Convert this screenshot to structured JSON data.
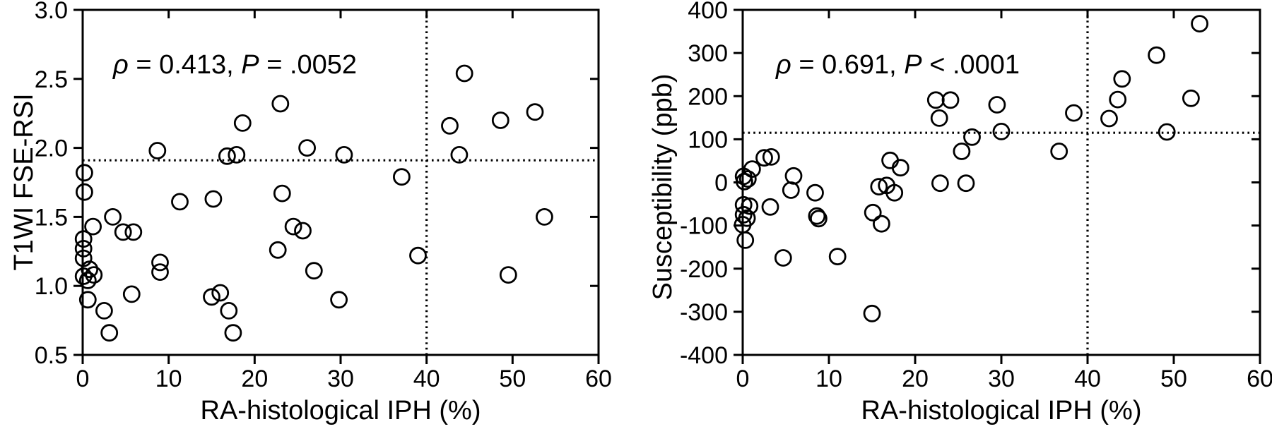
{
  "figure": {
    "background": "#ffffff",
    "ink_color": "#000000",
    "description": "Two-panel scatter figure: MRI metrics vs histological intraplaque hemorrhage percentage"
  },
  "chart_data": [
    {
      "type": "scatter",
      "name": "t1wi-fse-rsi-vs-iph",
      "title": "",
      "xlabel": "RA-histological IPH (%)",
      "ylabel": "T1WI FSE-RSI",
      "xlim": [
        0,
        60
      ],
      "ylim": [
        0.5,
        3.0
      ],
      "grid": false,
      "legend_position": "none",
      "marker": "open-circle",
      "xticks": {
        "values": [
          0,
          10,
          20,
          30,
          40,
          50,
          60
        ],
        "labels": [
          "0",
          "10",
          "20",
          "30",
          "40",
          "50",
          "60"
        ]
      },
      "yticks": {
        "values": [
          0.5,
          1.0,
          1.5,
          2.0,
          2.5,
          3.0
        ],
        "labels": [
          "0.5",
          "1.0",
          "1.5",
          "2.0",
          "2.5",
          "3.0"
        ]
      },
      "annotation": {
        "plain_text": "ρ = 0.413, P = .0052",
        "segments": [
          {
            "text": "ρ",
            "italic": true
          },
          {
            "text": " = 0.413, ",
            "italic": false
          },
          {
            "text": "P",
            "italic": true
          },
          {
            "text": " = .0052",
            "italic": false
          }
        ]
      },
      "reference_lines": {
        "horizontal_y": 1.91,
        "vertical_x": 40,
        "style": "dotted"
      },
      "points": [
        [
          0.2,
          1.82
        ],
        [
          0.2,
          1.68
        ],
        [
          0.1,
          1.34
        ],
        [
          0.1,
          1.27
        ],
        [
          0.1,
          1.2
        ],
        [
          0.8,
          1.12
        ],
        [
          0.1,
          1.07
        ],
        [
          0.6,
          1.04
        ],
        [
          1.3,
          1.08
        ],
        [
          0.6,
          0.9
        ],
        [
          1.2,
          1.43
        ],
        [
          2.5,
          0.82
        ],
        [
          3.1,
          0.66
        ],
        [
          3.5,
          1.5
        ],
        [
          4.7,
          1.39
        ],
        [
          5.9,
          1.39
        ],
        [
          5.7,
          0.94
        ],
        [
          8.7,
          1.98
        ],
        [
          9.0,
          1.17
        ],
        [
          9.0,
          1.1
        ],
        [
          11.3,
          1.61
        ],
        [
          15.2,
          1.63
        ],
        [
          15.0,
          0.92
        ],
        [
          16.0,
          0.95
        ],
        [
          17.0,
          0.82
        ],
        [
          17.5,
          0.66
        ],
        [
          16.8,
          1.94
        ],
        [
          17.9,
          1.95
        ],
        [
          18.6,
          2.18
        ],
        [
          23.0,
          2.32
        ],
        [
          23.2,
          1.67
        ],
        [
          22.7,
          1.26
        ],
        [
          24.5,
          1.43
        ],
        [
          25.6,
          1.4
        ],
        [
          26.1,
          2.0
        ],
        [
          26.9,
          1.11
        ],
        [
          29.8,
          0.9
        ],
        [
          30.4,
          1.95
        ],
        [
          37.1,
          1.79
        ],
        [
          39.0,
          1.22
        ],
        [
          42.7,
          2.16
        ],
        [
          43.8,
          1.95
        ],
        [
          44.4,
          2.54
        ],
        [
          48.6,
          2.2
        ],
        [
          49.5,
          1.08
        ],
        [
          52.6,
          2.26
        ],
        [
          53.7,
          1.5
        ]
      ]
    },
    {
      "type": "scatter",
      "name": "susceptibility-vs-iph",
      "title": "",
      "xlabel": "RA-histological IPH (%)",
      "ylabel": "Susceptibility (ppb)",
      "xlim": [
        0,
        60
      ],
      "ylim": [
        -400,
        400
      ],
      "grid": false,
      "legend_position": "none",
      "marker": "open-circle",
      "xticks": {
        "values": [
          0,
          10,
          20,
          30,
          40,
          50,
          60
        ],
        "labels": [
          "0",
          "10",
          "20",
          "30",
          "40",
          "50",
          "60"
        ]
      },
      "yticks": {
        "values": [
          -400,
          -300,
          -200,
          -100,
          0,
          100,
          200,
          300,
          400
        ],
        "labels": [
          "-400",
          "-300",
          "-200",
          "-100",
          "0",
          "100",
          "200",
          "300",
          "400"
        ]
      },
      "annotation": {
        "plain_text": "ρ = 0.691, P < .0001",
        "segments": [
          {
            "text": "ρ",
            "italic": true
          },
          {
            "text": " = 0.691, ",
            "italic": false
          },
          {
            "text": "P",
            "italic": true
          },
          {
            "text": " < .0001",
            "italic": false
          }
        ]
      },
      "reference_lines": {
        "horizontal_y": 115,
        "vertical_x": 40,
        "style": "dotted"
      },
      "points": [
        [
          0.1,
          14
        ],
        [
          0.6,
          8
        ],
        [
          0.2,
          2
        ],
        [
          1.1,
          31
        ],
        [
          0.1,
          -52
        ],
        [
          0.8,
          -55
        ],
        [
          0.1,
          -75
        ],
        [
          0.5,
          -83
        ],
        [
          0.0,
          -98
        ],
        [
          0.3,
          -134
        ],
        [
          2.5,
          57
        ],
        [
          3.3,
          59
        ],
        [
          3.2,
          -57
        ],
        [
          4.7,
          -175
        ],
        [
          5.9,
          15
        ],
        [
          5.6,
          -18
        ],
        [
          8.4,
          -24
        ],
        [
          8.6,
          -78
        ],
        [
          8.8,
          -84
        ],
        [
          11.0,
          -172
        ],
        [
          15.1,
          -70
        ],
        [
          16.1,
          -96
        ],
        [
          15.8,
          -10
        ],
        [
          16.7,
          -7
        ],
        [
          17.6,
          -24
        ],
        [
          17.1,
          51
        ],
        [
          18.3,
          34
        ],
        [
          15.0,
          -304
        ],
        [
          22.4,
          191
        ],
        [
          24.1,
          191
        ],
        [
          22.8,
          149
        ],
        [
          22.9,
          -2
        ],
        [
          25.9,
          -2
        ],
        [
          25.4,
          72
        ],
        [
          26.6,
          105
        ],
        [
          30.0,
          118
        ],
        [
          29.5,
          180
        ],
        [
          36.7,
          72
        ],
        [
          38.4,
          161
        ],
        [
          42.5,
          148
        ],
        [
          43.5,
          192
        ],
        [
          44.0,
          240
        ],
        [
          48.0,
          295
        ],
        [
          49.2,
          117
        ],
        [
          52.0,
          195
        ],
        [
          53.0,
          368
        ]
      ]
    }
  ]
}
